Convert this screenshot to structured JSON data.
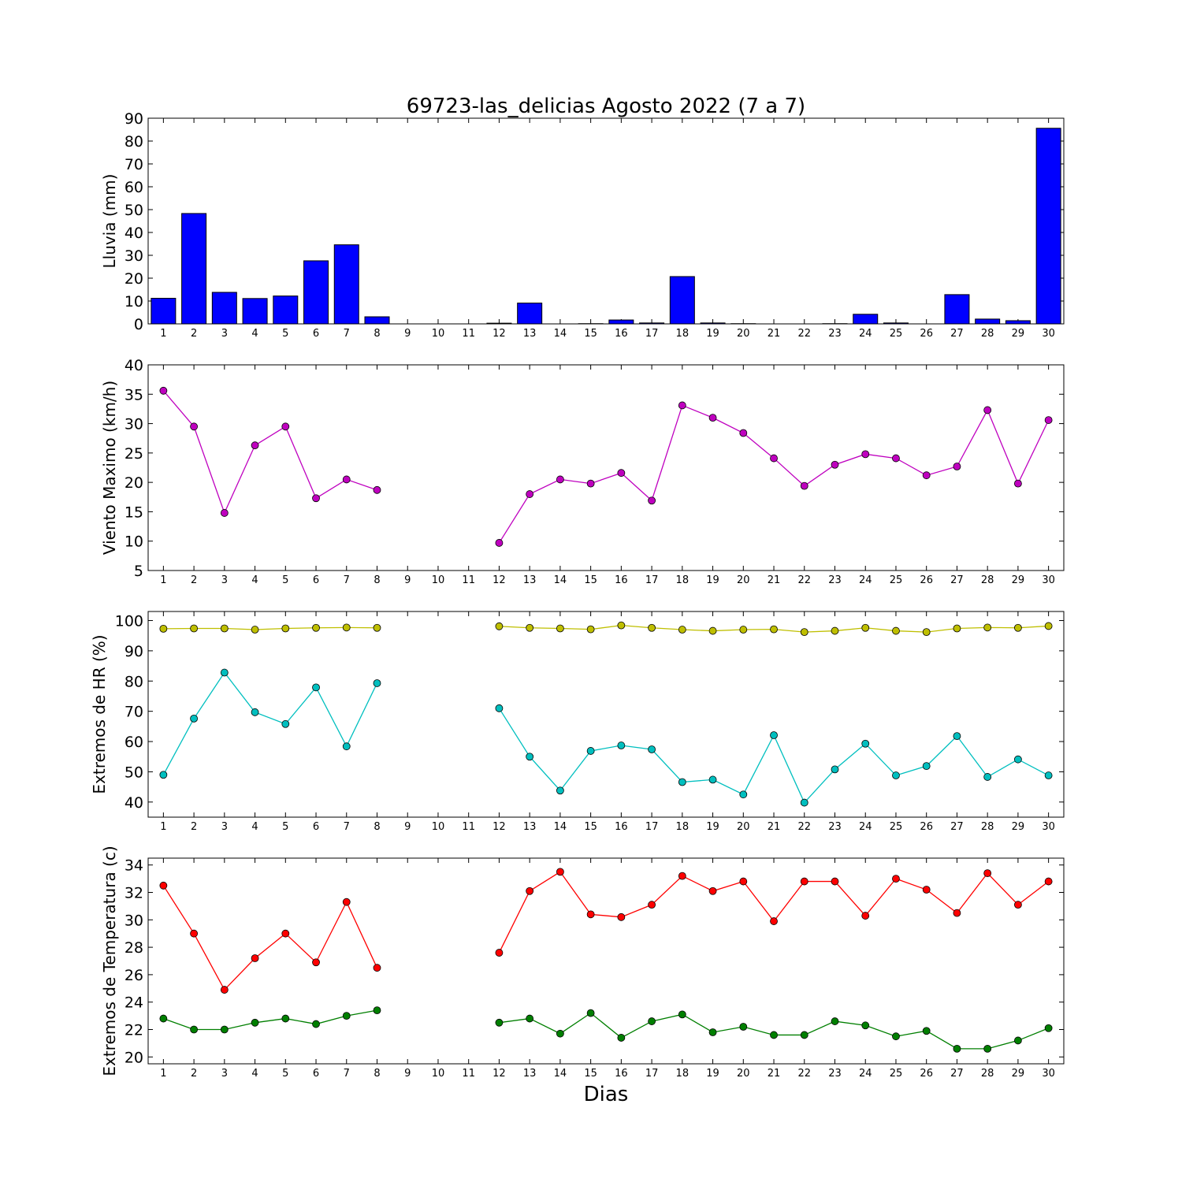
{
  "title": "69723-las_delicias Agosto 2022  (7 a 7)",
  "xlabel": "Dias",
  "chart_data": [
    {
      "type": "bar",
      "ylabel": "Lluvia (mm)",
      "ylim": [
        0,
        90
      ],
      "yticks": [
        0,
        10,
        20,
        30,
        40,
        50,
        60,
        70,
        80,
        90
      ],
      "categories": [
        1,
        2,
        3,
        4,
        5,
        6,
        7,
        8,
        9,
        10,
        11,
        12,
        13,
        14,
        15,
        16,
        17,
        18,
        19,
        20,
        21,
        22,
        23,
        24,
        25,
        26,
        27,
        28,
        29,
        30
      ],
      "color": "#0000ff",
      "values": [
        11.2,
        48.3,
        13.8,
        11.1,
        12.2,
        27.6,
        34.6,
        3.1,
        0,
        0,
        0,
        0.3,
        9.1,
        0,
        0.1,
        1.7,
        0.4,
        20.7,
        0.4,
        0.1,
        0,
        0,
        0.1,
        4.2,
        0.4,
        0,
        12.8,
        2.1,
        1.4,
        85.6
      ]
    },
    {
      "type": "line",
      "ylabel": "Viento Maximo (km/h)",
      "ylim": [
        5,
        40
      ],
      "yticks": [
        5,
        10,
        15,
        20,
        25,
        30,
        35,
        40
      ],
      "x": [
        1,
        2,
        3,
        4,
        5,
        6,
        7,
        8,
        9,
        10,
        11,
        12,
        13,
        14,
        15,
        16,
        17,
        18,
        19,
        20,
        21,
        22,
        23,
        24,
        25,
        26,
        27,
        28,
        29,
        30
      ],
      "series": [
        {
          "color": "#bf00bf",
          "values": [
            35.6,
            29.5,
            14.8,
            26.3,
            29.5,
            17.3,
            20.5,
            18.7,
            null,
            null,
            null,
            9.7,
            18.0,
            20.5,
            19.8,
            21.6,
            16.9,
            33.1,
            31.0,
            28.4,
            24.1,
            19.4,
            23.0,
            24.8,
            24.1,
            21.2,
            22.7,
            32.3,
            19.8,
            30.6
          ]
        }
      ]
    },
    {
      "type": "line",
      "ylabel": "Extremos de HR (%)",
      "ylim": [
        35,
        103
      ],
      "yticks": [
        40,
        50,
        60,
        70,
        80,
        90,
        100
      ],
      "x": [
        1,
        2,
        3,
        4,
        5,
        6,
        7,
        8,
        9,
        10,
        11,
        12,
        13,
        14,
        15,
        16,
        17,
        18,
        19,
        20,
        21,
        22,
        23,
        24,
        25,
        26,
        27,
        28,
        29,
        30
      ],
      "series": [
        {
          "color": "#bfbf00",
          "values": [
            97.3,
            97.4,
            97.4,
            97.0,
            97.4,
            97.6,
            97.7,
            97.6,
            null,
            null,
            null,
            98.1,
            97.6,
            97.4,
            97.1,
            98.4,
            97.6,
            97.0,
            96.6,
            97.0,
            97.1,
            96.2,
            96.6,
            97.6,
            96.6,
            96.2,
            97.4,
            97.7,
            97.6,
            98.2
          ]
        },
        {
          "color": "#00bfbf",
          "values": [
            49.0,
            67.6,
            82.8,
            69.7,
            65.8,
            77.9,
            58.4,
            79.3,
            null,
            null,
            null,
            71.0,
            55.0,
            43.8,
            56.9,
            58.7,
            57.4,
            46.6,
            47.4,
            42.5,
            62.1,
            39.8,
            50.8,
            59.3,
            48.8,
            51.9,
            61.8,
            48.3,
            54.1,
            48.8
          ]
        }
      ]
    },
    {
      "type": "line",
      "ylabel": "Extremos de Temperatura (c)",
      "ylim": [
        19.5,
        34.5
      ],
      "yticks": [
        20,
        22,
        24,
        26,
        28,
        30,
        32,
        34
      ],
      "x": [
        1,
        2,
        3,
        4,
        5,
        6,
        7,
        8,
        9,
        10,
        11,
        12,
        13,
        14,
        15,
        16,
        17,
        18,
        19,
        20,
        21,
        22,
        23,
        24,
        25,
        26,
        27,
        28,
        29,
        30
      ],
      "series": [
        {
          "color": "#ff0000",
          "values": [
            32.5,
            29.0,
            24.9,
            27.2,
            29.0,
            26.9,
            31.3,
            26.5,
            null,
            null,
            null,
            27.6,
            32.1,
            33.5,
            30.4,
            30.2,
            31.1,
            33.2,
            32.1,
            32.8,
            29.9,
            32.8,
            32.8,
            30.3,
            33.0,
            32.2,
            30.5,
            33.4,
            31.1,
            32.8
          ]
        },
        {
          "color": "#007f00",
          "values": [
            22.8,
            22.0,
            22.0,
            22.5,
            22.8,
            22.4,
            23.0,
            23.4,
            null,
            null,
            null,
            22.5,
            22.8,
            21.7,
            23.2,
            21.4,
            22.6,
            23.1,
            21.8,
            22.2,
            21.6,
            21.6,
            22.6,
            22.3,
            21.5,
            21.9,
            20.6,
            20.6,
            21.2,
            22.1
          ]
        }
      ]
    }
  ]
}
